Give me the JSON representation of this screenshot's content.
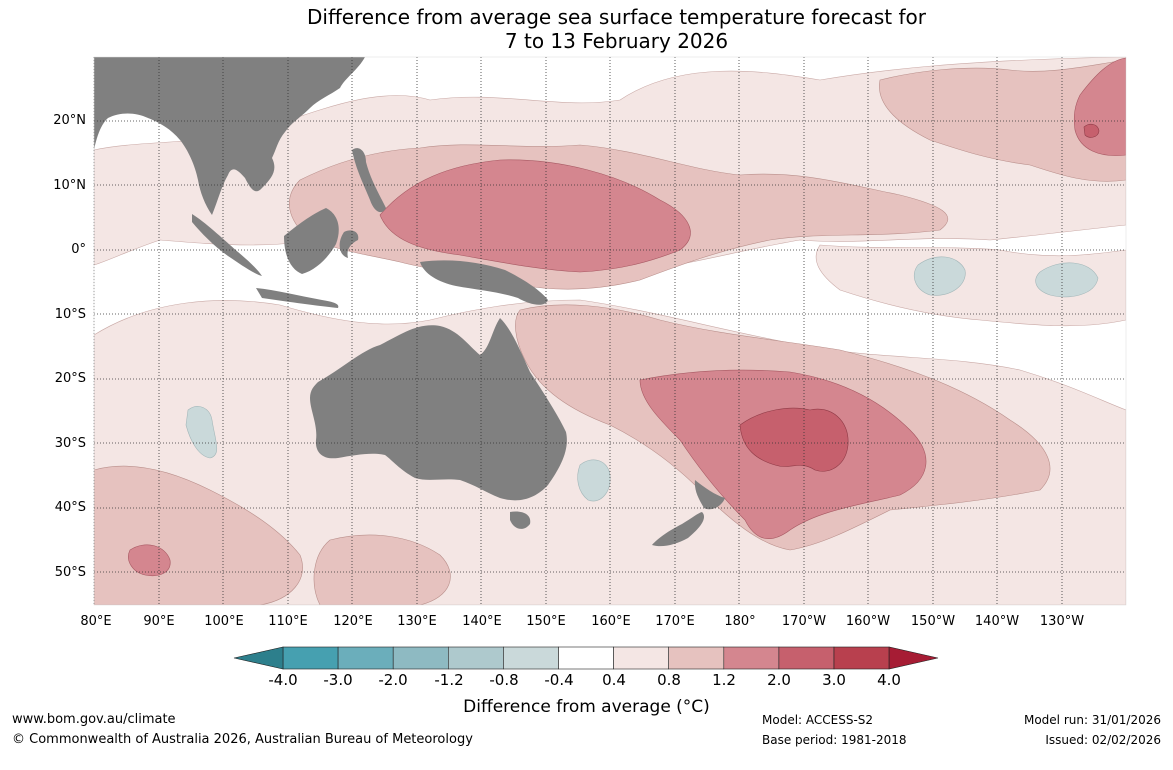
{
  "title": {
    "line1": "Difference from average sea surface temperature forecast for",
    "line2": "7 to 13 February 2026"
  },
  "map": {
    "latitude_labels": [
      "20°N",
      "10°N",
      "0°",
      "10°S",
      "20°S",
      "30°S",
      "40°S",
      "50°S"
    ],
    "longitude_labels": [
      "80°E",
      "90°E",
      "100°E",
      "110°E",
      "120°E",
      "130°E",
      "140°E",
      "150°E",
      "160°E",
      "170°E",
      "180°",
      "170°W",
      "160°W",
      "150°W",
      "140°W",
      "130°W"
    ]
  },
  "colorbar": {
    "labels": [
      "-4.0",
      "-3.0",
      "-2.0",
      "-1.2",
      "-0.8",
      "-0.4",
      "0.4",
      "0.8",
      "1.2",
      "2.0",
      "3.0",
      "4.0"
    ],
    "colors": [
      "#2d7f8c",
      "#46a0b0",
      "#6baebb",
      "#8ebac2",
      "#aec9cd",
      "#cad9da",
      "#ffffff",
      "#f4e6e4",
      "#e6c2bf",
      "#d4868f",
      "#c6606d",
      "#b8404e",
      "#a61c34"
    ],
    "title": "Difference from average (°C)"
  },
  "footer": {
    "website": "www.bom.gov.au/climate",
    "copyright": "© Commonwealth of Australia 2026, Australian Bureau of Meteorology",
    "model": "Model: ACCESS-S2",
    "base_period": "Base period: 1981-2018",
    "model_run": "Model run: 31/01/2026",
    "issued": "Issued: 02/02/2026"
  }
}
